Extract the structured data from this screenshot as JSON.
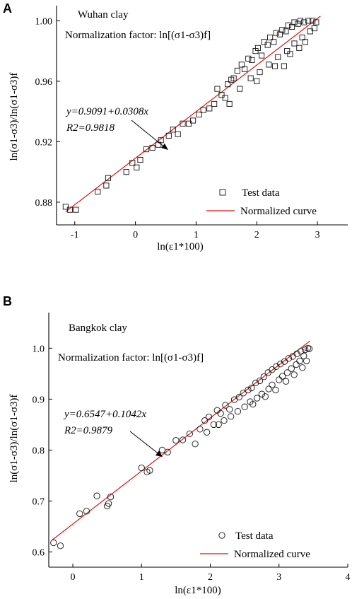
{
  "colors": {
    "fit_line": "#e01010",
    "markers": "#111111",
    "axes": "#000000"
  },
  "chart_data": [
    {
      "panel": "A",
      "type": "scatter",
      "title": "Wuhan clay",
      "subtitle": "Normalization factor: ln[(σ1-σ3)f]",
      "xlabel": "ln(ε1*100)",
      "ylabel": "ln(σ1-σ3)/ln(σ1-σ3)f",
      "xlim": [
        -1.3,
        3.5
      ],
      "ylim": [
        0.865,
        1.01
      ],
      "xticks": [
        -1,
        0,
        1,
        2,
        3
      ],
      "yticks": [
        0.88,
        0.92,
        0.96,
        1.0
      ],
      "ytick_labels": [
        "0.88",
        "0.92",
        "0.96",
        "1.00"
      ],
      "grid": false,
      "legend_position": "bottom-right",
      "marker": "square",
      "annotation": {
        "equation": "y=0.9091+0.0308x",
        "r2_label": "R2=0.9818"
      },
      "fit": {
        "intercept": 0.9091,
        "slope": 0.0308,
        "x_range": [
          -1.15,
          3.05
        ]
      },
      "series": [
        {
          "name": "Test data",
          "points": [
            [
              -1.15,
              0.877
            ],
            [
              -1.08,
              0.875
            ],
            [
              -0.98,
              0.875
            ],
            [
              -0.62,
              0.887
            ],
            [
              -0.48,
              0.891
            ],
            [
              -0.45,
              0.896
            ],
            [
              -0.15,
              0.9
            ],
            [
              -0.05,
              0.906
            ],
            [
              0.02,
              0.903
            ],
            [
              0.08,
              0.908
            ],
            [
              0.18,
              0.915
            ],
            [
              0.28,
              0.916
            ],
            [
              0.38,
              0.918
            ],
            [
              0.42,
              0.921
            ],
            [
              0.55,
              0.924
            ],
            [
              0.62,
              0.928
            ],
            [
              0.7,
              0.925
            ],
            [
              0.78,
              0.932
            ],
            [
              0.88,
              0.932
            ],
            [
              0.95,
              0.934
            ],
            [
              1.05,
              0.938
            ],
            [
              1.12,
              0.941
            ],
            [
              1.22,
              0.942
            ],
            [
              1.3,
              0.945
            ],
            [
              1.35,
              0.955
            ],
            [
              1.42,
              0.951
            ],
            [
              1.48,
              0.949
            ],
            [
              1.52,
              0.958
            ],
            [
              1.58,
              0.961
            ],
            [
              1.62,
              0.962
            ],
            [
              1.68,
              0.967
            ],
            [
              1.75,
              0.971
            ],
            [
              1.8,
              0.968
            ],
            [
              1.86,
              0.975
            ],
            [
              1.92,
              0.974
            ],
            [
              1.98,
              0.98
            ],
            [
              2.02,
              0.982
            ],
            [
              2.08,
              0.977
            ],
            [
              2.12,
              0.986
            ],
            [
              2.18,
              0.984
            ],
            [
              2.22,
              0.989
            ],
            [
              2.28,
              0.986
            ],
            [
              2.32,
              0.992
            ],
            [
              2.38,
              0.991
            ],
            [
              2.42,
              0.994
            ],
            [
              2.48,
              0.993
            ],
            [
              2.52,
              0.997
            ],
            [
              2.58,
              0.996
            ],
            [
              2.62,
              0.999
            ],
            [
              2.68,
              0.998
            ],
            [
              2.72,
              1.0
            ],
            [
              2.78,
              0.999
            ],
            [
              2.85,
              1.0
            ],
            [
              2.92,
              1.0
            ],
            [
              2.98,
              0.999
            ],
            [
              1.55,
              0.945
            ],
            [
              1.72,
              0.955
            ],
            [
              1.9,
              0.962
            ],
            [
              2.05,
              0.966
            ],
            [
              2.2,
              0.971
            ],
            [
              2.35,
              0.976
            ],
            [
              2.5,
              0.98
            ],
            [
              2.62,
              0.985
            ],
            [
              2.75,
              0.989
            ],
            [
              2.88,
              0.993
            ],
            [
              2.0,
              0.96
            ],
            [
              2.3,
              0.97
            ],
            [
              2.55,
              0.978
            ],
            [
              2.8,
              0.986
            ],
            [
              2.95,
              0.995
            ],
            [
              2.45,
              0.97
            ],
            [
              2.7,
              0.982
            ]
          ]
        }
      ]
    },
    {
      "panel": "B",
      "type": "scatter",
      "title": "Bangkok clay",
      "subtitle": "Normalization factor: ln[(σ1-σ3)f]",
      "xlabel": "ln(ε1*100)",
      "ylabel": "ln(σ1-σ3)/ln(σ1-σ3)f",
      "xlim": [
        -0.35,
        4.0
      ],
      "ylim": [
        0.57,
        1.07
      ],
      "xticks": [
        0,
        1,
        2,
        3,
        4
      ],
      "yticks": [
        0.6,
        0.7,
        0.8,
        0.9,
        1.0
      ],
      "ytick_labels": [
        "0.6",
        "0.7",
        "0.8",
        "0.9",
        "1.0"
      ],
      "grid": false,
      "legend_position": "bottom-right",
      "marker": "circle",
      "annotation": {
        "equation": "y=0.6547+0.1042x",
        "r2_label": "R2=0.9879"
      },
      "fit": {
        "intercept": 0.6547,
        "slope": 0.1042,
        "x_range": [
          -0.3,
          3.45
        ]
      },
      "series": [
        {
          "name": "Test data",
          "points": [
            [
              -0.28,
              0.618
            ],
            [
              -0.18,
              0.612
            ],
            [
              0.1,
              0.675
            ],
            [
              0.2,
              0.68
            ],
            [
              0.35,
              0.71
            ],
            [
              0.5,
              0.69
            ],
            [
              0.52,
              0.695
            ],
            [
              0.55,
              0.708
            ],
            [
              1.0,
              0.765
            ],
            [
              1.08,
              0.757
            ],
            [
              1.12,
              0.76
            ],
            [
              1.3,
              0.8
            ],
            [
              1.38,
              0.796
            ],
            [
              1.5,
              0.819
            ],
            [
              1.6,
              0.82
            ],
            [
              1.7,
              0.832
            ],
            [
              1.78,
              0.812
            ],
            [
              1.85,
              0.841
            ],
            [
              1.92,
              0.858
            ],
            [
              1.98,
              0.865
            ],
            [
              2.05,
              0.85
            ],
            [
              2.1,
              0.878
            ],
            [
              2.15,
              0.872
            ],
            [
              2.22,
              0.888
            ],
            [
              2.28,
              0.88
            ],
            [
              2.35,
              0.899
            ],
            [
              2.42,
              0.904
            ],
            [
              2.48,
              0.912
            ],
            [
              2.55,
              0.918
            ],
            [
              2.6,
              0.922
            ],
            [
              2.66,
              0.932
            ],
            [
              2.72,
              0.936
            ],
            [
              2.78,
              0.944
            ],
            [
              2.84,
              0.952
            ],
            [
              2.9,
              0.958
            ],
            [
              2.96,
              0.964
            ],
            [
              3.02,
              0.969
            ],
            [
              3.08,
              0.974
            ],
            [
              3.14,
              0.98
            ],
            [
              3.2,
              0.984
            ],
            [
              3.26,
              0.989
            ],
            [
              3.32,
              0.994
            ],
            [
              3.38,
              0.997
            ],
            [
              3.42,
              1.0
            ],
            [
              3.44,
              0.999
            ],
            [
              2.2,
              0.858
            ],
            [
              2.4,
              0.876
            ],
            [
              2.58,
              0.895
            ],
            [
              2.75,
              0.91
            ],
            [
              2.9,
              0.928
            ],
            [
              3.05,
              0.945
            ],
            [
              3.18,
              0.96
            ],
            [
              3.3,
              0.975
            ],
            [
              2.5,
              0.885
            ],
            [
              2.68,
              0.902
            ],
            [
              2.85,
              0.92
            ],
            [
              3.0,
              0.938
            ],
            [
              3.12,
              0.952
            ],
            [
              3.25,
              0.968
            ],
            [
              3.36,
              0.985
            ],
            [
              1.95,
              0.835
            ],
            [
              2.12,
              0.85
            ],
            [
              2.3,
              0.866
            ],
            [
              2.62,
              0.89
            ],
            [
              2.8,
              0.905
            ],
            [
              2.95,
              0.918
            ],
            [
              3.1,
              0.935
            ],
            [
              3.22,
              0.948
            ],
            [
              3.34,
              0.962
            ],
            [
              3.4,
              0.975
            ]
          ]
        }
      ]
    }
  ],
  "legend_labels": {
    "test_data": "Test data",
    "normalized_curve": "Normalized curve"
  }
}
